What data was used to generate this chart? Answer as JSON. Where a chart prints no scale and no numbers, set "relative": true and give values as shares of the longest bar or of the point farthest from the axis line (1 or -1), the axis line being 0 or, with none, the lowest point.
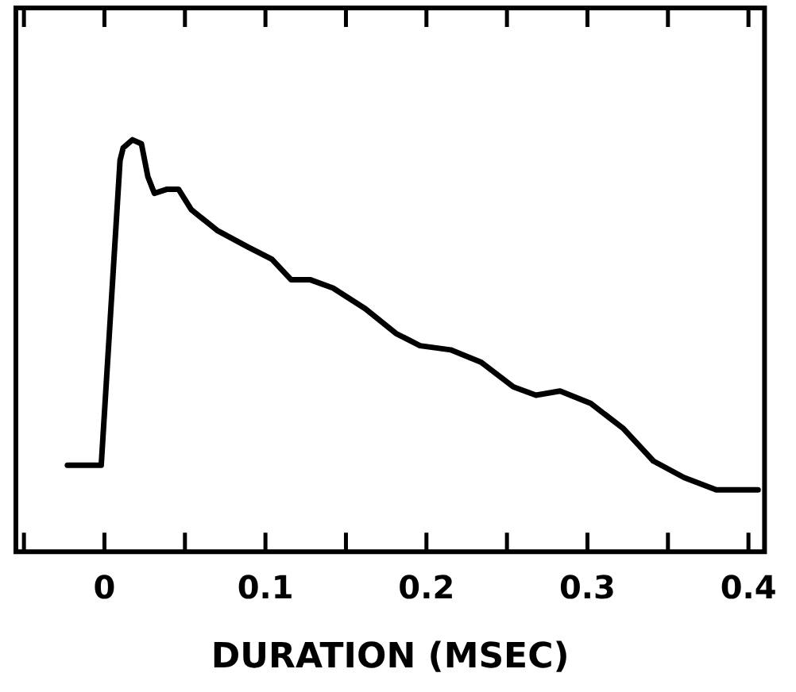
{
  "chart_data": {
    "type": "line",
    "relative": true,
    "xlabel": "DURATION (MSEC)",
    "xlim": [
      -0.055,
      0.41
    ],
    "xticks": [
      {
        "value": -0.05,
        "label": null
      },
      0,
      {
        "value": 0.05,
        "label": null
      },
      0.1,
      {
        "value": 0.15,
        "label": null
      },
      0.2,
      {
        "value": 0.25,
        "label": null
      },
      0.3,
      {
        "value": 0.35,
        "label": null
      },
      0.4
    ],
    "grid": false,
    "legend": false,
    "marker": "none",
    "line_style": "solid",
    "series": [
      {
        "color": "#000000",
        "x": [
          -0.023,
          -0.002,
          0.0097,
          0.0116,
          0.0174,
          0.023,
          0.027,
          0.031,
          0.039,
          0.046,
          0.054,
          0.07,
          0.089,
          0.104,
          0.116,
          0.128,
          0.142,
          0.162,
          0.181,
          0.196,
          0.215,
          0.234,
          0.254,
          0.268,
          0.283,
          0.302,
          0.322,
          0.341,
          0.36,
          0.38,
          0.406
        ],
        "values": [
          0.21,
          0.21,
          0.95,
          0.98,
          1,
          0.99,
          0.91,
          0.87,
          0.88,
          0.88,
          0.83,
          0.78,
          0.74,
          0.71,
          0.66,
          0.66,
          0.64,
          0.59,
          0.53,
          0.5,
          0.49,
          0.46,
          0.4,
          0.38,
          0.39,
          0.36,
          0.3,
          0.22,
          0.18,
          0.15,
          0.15
        ]
      }
    ]
  }
}
